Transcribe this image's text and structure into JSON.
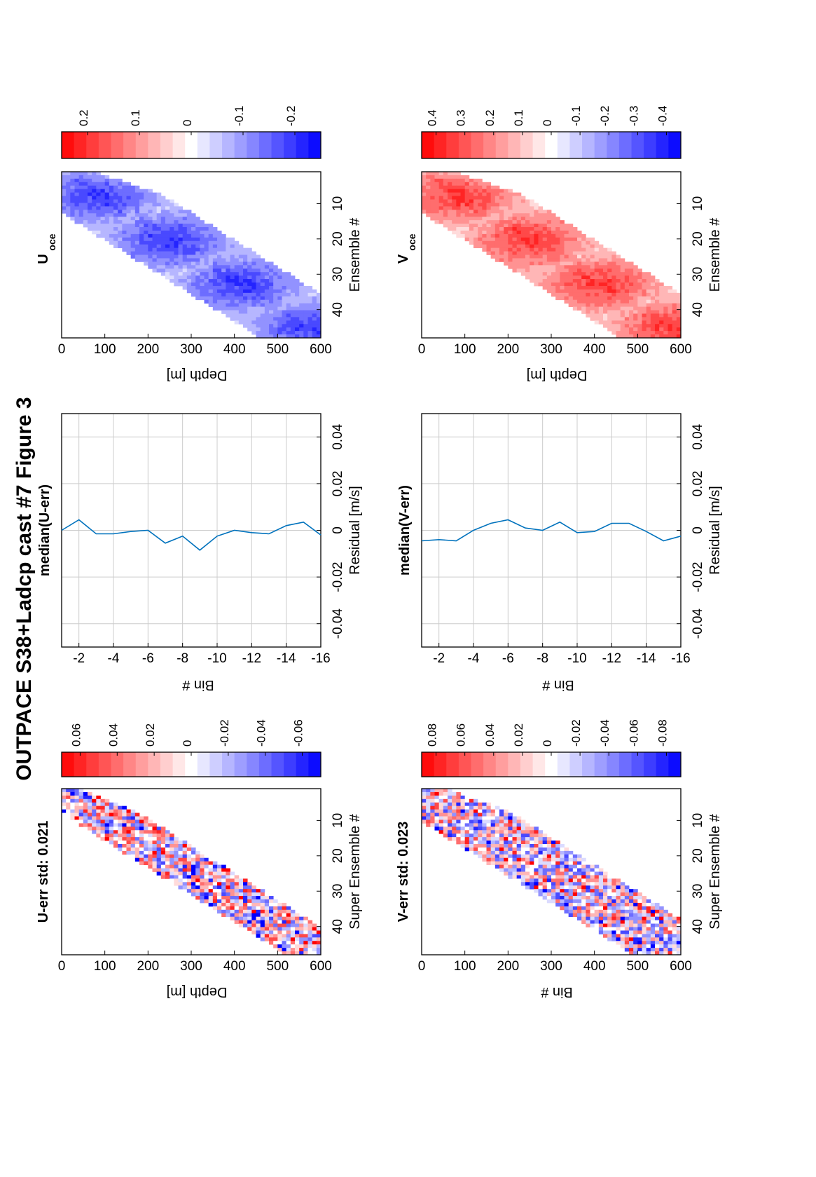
{
  "figure": {
    "title": "OUTPACE S38+Ladcp cast #7  Figure 3"
  },
  "colors": {
    "pos": "#ff0000",
    "neg": "#0000ff",
    "line": "#0072bd",
    "grid": "#cccccc"
  },
  "chart_data": [
    {
      "id": "u_err",
      "type": "heatmap",
      "title": "U-err std: 0.021",
      "xlabel": "Super Ensemble #",
      "ylabel": "Depth [m]",
      "x_ticks": [
        10,
        20,
        30,
        40
      ],
      "y_ticks": [
        0,
        100,
        200,
        300,
        400,
        500,
        600
      ],
      "xlim": [
        1,
        48
      ],
      "ylim": [
        0,
        600
      ],
      "band": {
        "top_x0": 1,
        "top_y0": 0,
        "top_x1": 48,
        "top_y1": 600,
        "width": 18,
        "seed": 11
      },
      "colorbar": {
        "range": [
          -0.07,
          0.07
        ],
        "ticks": [
          "0.06",
          "0.04",
          "0.02",
          "0",
          "-0.02",
          "-0.04",
          "-0.06"
        ],
        "tick_values": [
          0.06,
          0.04,
          0.02,
          0,
          -0.02,
          -0.04,
          -0.06
        ]
      }
    },
    {
      "id": "u_med",
      "type": "line",
      "title": "median(U-err)",
      "xlabel": "Residual [m/s]",
      "ylabel": "Bin #",
      "x_ticks": [
        "-0.04",
        "-0.02",
        "0",
        "0.02",
        "0.04"
      ],
      "x_tick_values": [
        -0.04,
        -0.02,
        0,
        0.02,
        0.04
      ],
      "y_ticks": [
        "-2",
        "-4",
        "-6",
        "-8",
        "-10",
        "-12",
        "-14",
        "-16"
      ],
      "y_tick_values": [
        -2,
        -4,
        -6,
        -8,
        -10,
        -12,
        -14,
        -16
      ],
      "xlim": [
        -0.05,
        0.05
      ],
      "ylim": [
        -1,
        -16
      ],
      "bins": [
        -1,
        -2,
        -3,
        -4,
        -5,
        -6,
        -7,
        -8,
        -9,
        -10,
        -11,
        -12,
        -13,
        -14,
        -15,
        -16
      ],
      "values": [
        0.0,
        0.0045,
        -0.0015,
        -0.0015,
        -0.0005,
        0.0,
        -0.0055,
        -0.0025,
        -0.0085,
        -0.0025,
        0.0,
        -0.001,
        -0.0015,
        0.002,
        0.0035,
        -0.002
      ]
    },
    {
      "id": "u_oce",
      "type": "heatmap",
      "title_main": "U",
      "title_sub": "oce",
      "xlabel": "Ensemble #",
      "ylabel": "Depth [m]",
      "x_ticks": [
        10,
        20,
        30,
        40
      ],
      "y_ticks": [
        0,
        100,
        200,
        300,
        400,
        500,
        600
      ],
      "xlim": [
        1,
        48
      ],
      "ylim": [
        0,
        600
      ],
      "band": {
        "top_x0": 1,
        "top_y0": 0,
        "top_x1": 48,
        "top_y1": 600,
        "width": 30,
        "seed": 23
      },
      "colorbar": {
        "range": [
          -0.25,
          0.25
        ],
        "ticks": [
          "0.2",
          "0.1",
          "0",
          "-0.1",
          "-0.2"
        ],
        "tick_values": [
          0.2,
          0.1,
          0,
          -0.1,
          -0.2
        ]
      }
    },
    {
      "id": "v_err",
      "type": "heatmap",
      "title": "V-err std: 0.023",
      "xlabel": "Super Ensemble #",
      "ylabel": "Bin #",
      "x_ticks": [
        10,
        20,
        30,
        40
      ],
      "y_ticks": [
        0,
        100,
        200,
        300,
        400,
        500,
        600
      ],
      "xlim": [
        1,
        48
      ],
      "ylim": [
        0,
        600
      ],
      "band": {
        "top_x0": 1,
        "top_y0": 0,
        "top_x1": 48,
        "top_y1": 600,
        "width": 24,
        "seed": 37
      },
      "colorbar": {
        "range": [
          -0.09,
          0.09
        ],
        "ticks": [
          "0.08",
          "0.06",
          "0.04",
          "0.02",
          "0",
          "-0.02",
          "-0.04",
          "-0.06",
          "-0.08"
        ],
        "tick_values": [
          0.08,
          0.06,
          0.04,
          0.02,
          0,
          -0.02,
          -0.04,
          -0.06,
          -0.08
        ]
      }
    },
    {
      "id": "v_med",
      "type": "line",
      "title": "median(V-err)",
      "xlabel": "Residual [m/s]",
      "ylabel": "Bin #",
      "x_ticks": [
        "-0.04",
        "-0.02",
        "0",
        "0.02",
        "0.04"
      ],
      "x_tick_values": [
        -0.04,
        -0.02,
        0,
        0.02,
        0.04
      ],
      "y_ticks": [
        "-2",
        "-4",
        "-6",
        "-8",
        "-10",
        "-12",
        "-14",
        "-16"
      ],
      "y_tick_values": [
        -2,
        -4,
        -6,
        -8,
        -10,
        -12,
        -14,
        -16
      ],
      "xlim": [
        -0.05,
        0.05
      ],
      "ylim": [
        -1,
        -16
      ],
      "bins": [
        -1,
        -2,
        -3,
        -4,
        -5,
        -6,
        -7,
        -8,
        -9,
        -10,
        -11,
        -12,
        -13,
        -14,
        -15,
        -16
      ],
      "values": [
        -0.0045,
        -0.004,
        -0.0045,
        0.0,
        0.003,
        0.0045,
        0.001,
        0.0,
        0.0035,
        -0.001,
        -0.0005,
        0.003,
        0.003,
        -0.0005,
        -0.0045,
        -0.0025
      ]
    },
    {
      "id": "v_oce",
      "type": "heatmap",
      "title_main": "V",
      "title_sub": "oce",
      "xlabel": "Ensemble #",
      "ylabel": "Depth [m]",
      "x_ticks": [
        10,
        20,
        30,
        40
      ],
      "y_ticks": [
        0,
        100,
        200,
        300,
        400,
        500,
        600
      ],
      "xlim": [
        1,
        48
      ],
      "ylim": [
        0,
        600
      ],
      "band": {
        "top_x0": 1,
        "top_y0": 0,
        "top_x1": 48,
        "top_y1": 600,
        "width": 30,
        "seed": 51
      },
      "colorbar": {
        "range": [
          -0.45,
          0.45
        ],
        "ticks": [
          "0.4",
          "0.3",
          "0.2",
          "0.1",
          "0",
          "-0.1",
          "-0.2",
          "-0.3",
          "-0.4"
        ],
        "tick_values": [
          0.4,
          0.3,
          0.2,
          0.1,
          0,
          -0.1,
          -0.2,
          -0.3,
          -0.4
        ]
      }
    }
  ]
}
